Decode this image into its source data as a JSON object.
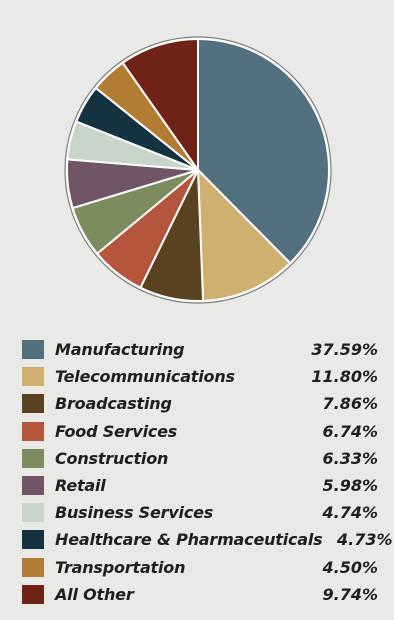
{
  "chart_data": {
    "type": "pie",
    "categories": [
      "Manufacturing",
      "Telecommunications",
      "Broadcasting",
      "Food Services",
      "Construction",
      "Retail",
      "Business Services",
      "Healthcare & Pharmaceuticals",
      "Transportation",
      "All Other"
    ],
    "values": [
      37.59,
      11.8,
      7.86,
      6.74,
      6.33,
      5.98,
      4.74,
      4.73,
      4.5,
      9.74
    ],
    "value_labels": [
      "37.59%",
      "11.80%",
      "7.86%",
      "6.74%",
      "6.33%",
      "5.98%",
      "4.74%",
      "4.73%",
      "4.50%",
      "9.74%"
    ],
    "colors": [
      "#52707f",
      "#cfb06f",
      "#5a4220",
      "#b5553c",
      "#7d8c5e",
      "#715566",
      "#c7d5cb",
      "#14323f",
      "#b27d33",
      "#6f2216"
    ],
    "start_angle": "12 o'clock",
    "direction": "clockwise",
    "legend_position": "bottom"
  }
}
